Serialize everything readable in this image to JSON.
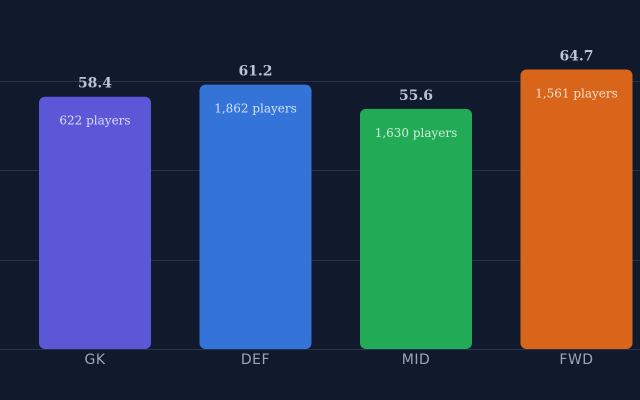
{
  "chart_data": {
    "type": "bar",
    "categories": [
      "GK",
      "DEF",
      "MID",
      "FWD"
    ],
    "values": [
      58.4,
      61.2,
      55.6,
      64.7
    ],
    "value_labels": [
      "58.4",
      "61.2",
      "55.6",
      "64.7"
    ],
    "bar_annotations": [
      "622 players",
      "1,862 players",
      "1,630 players",
      "1,561 players"
    ],
    "colors": [
      "#5b57d6",
      "#3474d8",
      "#22ab57",
      "#d9651a"
    ],
    "title": "",
    "xlabel": "",
    "ylabel": "",
    "ylim": [
      0,
      66.9
    ],
    "grid": true,
    "legend": "none"
  }
}
